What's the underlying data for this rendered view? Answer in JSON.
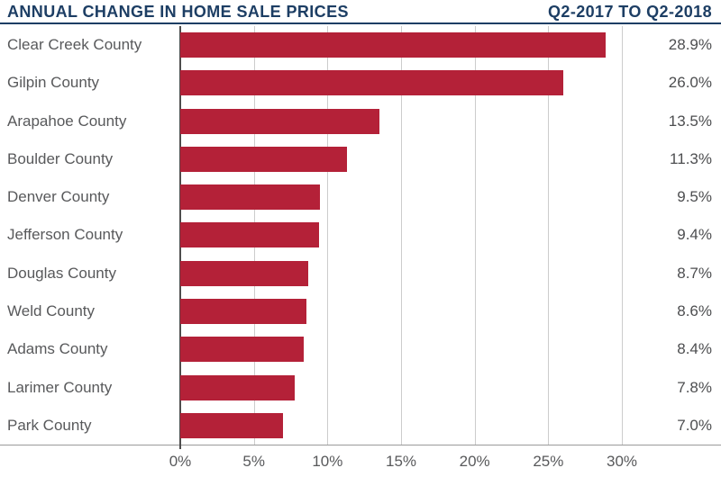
{
  "header": {
    "title": "ANNUAL CHANGE IN HOME SALE PRICES",
    "period": "Q2-2017 TO Q2-2018"
  },
  "chart_data": {
    "type": "bar",
    "orientation": "horizontal",
    "title": "ANNUAL CHANGE IN HOME SALE PRICES",
    "subtitle": "Q2-2017 TO Q2-2018",
    "categories": [
      "Clear Creek County",
      "Gilpin County",
      "Arapahoe County",
      "Boulder County",
      "Denver County",
      "Jefferson County",
      "Douglas County",
      "Weld County",
      "Adams County",
      "Larimer County",
      "Park County"
    ],
    "values": [
      28.9,
      26.0,
      13.5,
      11.3,
      9.5,
      9.4,
      8.7,
      8.6,
      8.4,
      7.8,
      7.0
    ],
    "value_labels": [
      "28.9%",
      "26.0%",
      "13.5%",
      "11.3%",
      "9.5%",
      "9.4%",
      "8.7%",
      "8.6%",
      "8.4%",
      "7.8%",
      "7.0%"
    ],
    "x_ticks": [
      0,
      5,
      10,
      15,
      20,
      25,
      30
    ],
    "x_tick_labels": [
      "0%",
      "5%",
      "10%",
      "15%",
      "20%",
      "25%",
      "30%"
    ],
    "xlim": [
      0,
      30
    ],
    "grid": true,
    "legend": false,
    "colors": {
      "bar": "#b42138",
      "title": "#1d3e64",
      "label_text": "#58595b",
      "value_text": "#4d4e50",
      "gridline": "#cccccc",
      "zero_axis": "#4d4d4d",
      "baseline": "#9a9a9a"
    }
  }
}
